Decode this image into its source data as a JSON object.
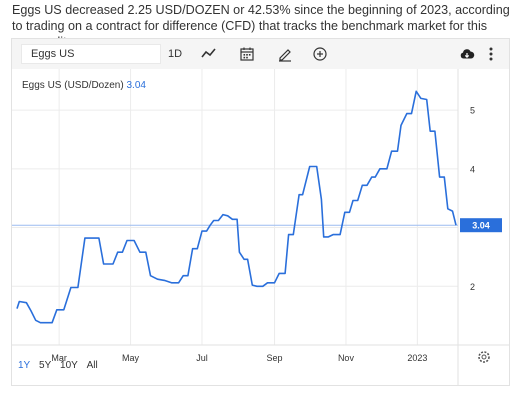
{
  "intro_text": "Eggs US decreased 2.25 USD/DOZEN or 42.53% since the beginning of 2023, according to trading on a contract for difference (CFD) that tracks the benchmark market for this commodity.",
  "toolbar": {
    "symbol": "Eggs US",
    "interval_label": "1D",
    "icons": [
      "line-chart-icon",
      "calendar-icon",
      "pencil-icon",
      "plus-circle-icon",
      "download-cloud-icon",
      "more-vertical-icon"
    ]
  },
  "chart_label": {
    "name": "Eggs US (USD/Dozen)",
    "value": "3.04"
  },
  "ranges": [
    {
      "label": "1Y",
      "active": true
    },
    {
      "label": "5Y",
      "active": false
    },
    {
      "label": "10Y",
      "active": false
    },
    {
      "label": "All",
      "active": false
    }
  ],
  "colors": {
    "line": "#2a6fdb",
    "price_tag_bg": "#2a6fdb",
    "toolbar_bg": "#f5f5f5"
  },
  "chart_data": {
    "type": "line",
    "title": "",
    "xlabel": "",
    "ylabel": "",
    "ylim": [
      1.0,
      5.7
    ],
    "y_ticks": [
      2,
      3,
      4,
      5
    ],
    "y_tick_labels": [
      "2",
      "",
      "4",
      "5"
    ],
    "x_ticks": [
      {
        "label": "Mar",
        "t": 36
      },
      {
        "label": "May",
        "t": 97
      },
      {
        "label": "Jul",
        "t": 158
      },
      {
        "label": "Sep",
        "t": 220
      },
      {
        "label": "Nov",
        "t": 281
      },
      {
        "label": "2023",
        "t": 342
      }
    ],
    "last_value": 3.04,
    "last_value_label": "3.04",
    "series": [
      {
        "points": [
          [
            0,
            1.62
          ],
          [
            2,
            1.74
          ],
          [
            8,
            1.72
          ],
          [
            12,
            1.58
          ],
          [
            16,
            1.42
          ],
          [
            20,
            1.38
          ],
          [
            30,
            1.38
          ],
          [
            34,
            1.6
          ],
          [
            40,
            1.6
          ],
          [
            46,
            1.98
          ],
          [
            52,
            1.98
          ],
          [
            58,
            2.82
          ],
          [
            70,
            2.82
          ],
          [
            74,
            2.38
          ],
          [
            82,
            2.38
          ],
          [
            86,
            2.58
          ],
          [
            90,
            2.58
          ],
          [
            94,
            2.78
          ],
          [
            100,
            2.78
          ],
          [
            105,
            2.58
          ],
          [
            110,
            2.58
          ],
          [
            114,
            2.18
          ],
          [
            120,
            2.12
          ],
          [
            126,
            2.1
          ],
          [
            132,
            2.06
          ],
          [
            138,
            2.06
          ],
          [
            142,
            2.18
          ],
          [
            146,
            2.18
          ],
          [
            150,
            2.64
          ],
          [
            154,
            2.64
          ],
          [
            158,
            2.94
          ],
          [
            162,
            2.94
          ],
          [
            165,
            3.04
          ],
          [
            168,
            3.12
          ],
          [
            172,
            3.12
          ],
          [
            176,
            3.22
          ],
          [
            180,
            3.2
          ],
          [
            184,
            3.14
          ],
          [
            188,
            3.14
          ],
          [
            190,
            2.58
          ],
          [
            194,
            2.46
          ],
          [
            197,
            2.46
          ],
          [
            201,
            2.02
          ],
          [
            205,
            2.0
          ],
          [
            210,
            2.0
          ],
          [
            214,
            2.06
          ],
          [
            220,
            2.06
          ],
          [
            224,
            2.22
          ],
          [
            229,
            2.22
          ],
          [
            232,
            2.88
          ],
          [
            236,
            2.88
          ],
          [
            241,
            3.56
          ],
          [
            244,
            3.56
          ],
          [
            250,
            4.04
          ],
          [
            256,
            4.04
          ],
          [
            260,
            3.48
          ],
          [
            262,
            2.84
          ],
          [
            266,
            2.84
          ],
          [
            270,
            2.88
          ],
          [
            276,
            2.88
          ],
          [
            280,
            3.26
          ],
          [
            284,
            3.26
          ],
          [
            287,
            3.46
          ],
          [
            291,
            3.46
          ],
          [
            295,
            3.72
          ],
          [
            299,
            3.72
          ],
          [
            303,
            3.86
          ],
          [
            306,
            3.86
          ],
          [
            310,
            4.0
          ],
          [
            316,
            4.0
          ],
          [
            320,
            4.3
          ],
          [
            325,
            4.3
          ],
          [
            328,
            4.74
          ],
          [
            333,
            4.94
          ],
          [
            337,
            4.94
          ],
          [
            341,
            5.32
          ],
          [
            345,
            5.2
          ],
          [
            350,
            5.18
          ],
          [
            353,
            4.64
          ],
          [
            357,
            4.64
          ],
          [
            361,
            3.86
          ],
          [
            365,
            3.86
          ],
          [
            368,
            3.32
          ],
          [
            372,
            3.28
          ],
          [
            375,
            3.04
          ]
        ]
      }
    ]
  }
}
